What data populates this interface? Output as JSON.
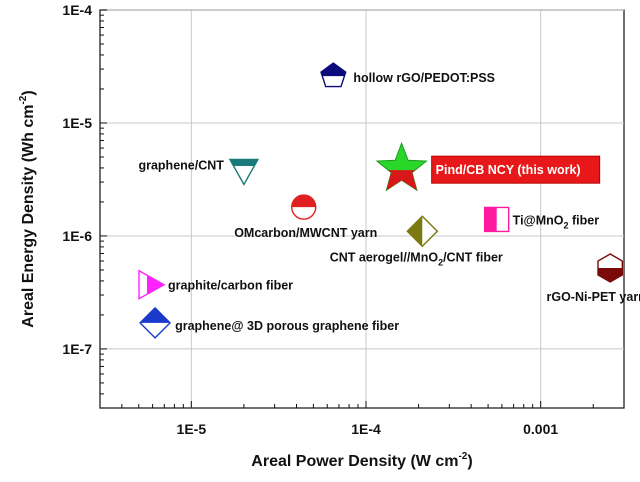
{
  "chart_data": {
    "type": "scatter",
    "title": "",
    "xlabel": "Areal Power Density (W cm",
    "xlabel_sup": "-2",
    "xlabel_end": ")",
    "ylabel": "Areal Energy Density (Wh cm",
    "ylabel_sup": "-2",
    "ylabel_end": ")",
    "xscale": "log",
    "yscale": "log",
    "xlim": [
      3e-06,
      0.003
    ],
    "ylim": [
      3e-08,
      0.0001
    ],
    "grid": true,
    "x_ticks": [
      {
        "value": 1e-05,
        "label": "1E-5"
      },
      {
        "value": 0.0001,
        "label": "1E-4"
      },
      {
        "value": 0.001,
        "label": "0.001"
      }
    ],
    "y_ticks": [
      {
        "value": 1e-07,
        "label": "1E-7"
      },
      {
        "value": 1e-06,
        "label": "1E-6"
      },
      {
        "value": 1e-05,
        "label": "1E-5"
      },
      {
        "value": 0.0001,
        "label": "1E-4"
      }
    ],
    "points": [
      {
        "name": "hollow rGO/PEDOT:PSS",
        "x": 6.5e-05,
        "y": 2.6e-05,
        "marker": "pentagon",
        "color": "#0a0a7a"
      },
      {
        "name": "graphene/CNT",
        "x": 2e-05,
        "y": 3.8e-06,
        "marker": "triangle-down",
        "color": "#1a7a7a"
      },
      {
        "name": "Pind/CB NCY (this work)",
        "x": 0.00016,
        "y": 3.9e-06,
        "marker": "star",
        "color": "#2bd62b",
        "highlight": true
      },
      {
        "name": "OMcarbon/MWCNT yarn",
        "x": 4.4e-05,
        "y": 1.8e-06,
        "marker": "circle",
        "color": "#e02020"
      },
      {
        "name": "Ti@MnO",
        "name_sub": "2",
        "name_end": " fiber",
        "x": 0.00056,
        "y": 1.4e-06,
        "marker": "square",
        "color": "#ff1aa0"
      },
      {
        "name": "CNT aerogel//MnO",
        "name_sub": "2",
        "name_end": "/CNT fiber",
        "x": 0.00021,
        "y": 1.1e-06,
        "marker": "diamond",
        "color": "#7a7a10"
      },
      {
        "name": "rGO-Ni-PET yarn",
        "x": 0.0025,
        "y": 5.2e-07,
        "marker": "hexagon",
        "color": "#7a0a0a"
      },
      {
        "name": "graphite/carbon fiber",
        "x": 5.8e-06,
        "y": 3.7e-07,
        "marker": "triangle-right",
        "color": "#ff22ff"
      },
      {
        "name": "graphene@ 3D porous graphene fiber",
        "x": 6.2e-06,
        "y": 1.7e-07,
        "marker": "diamond",
        "color": "#1a3acc"
      }
    ]
  }
}
